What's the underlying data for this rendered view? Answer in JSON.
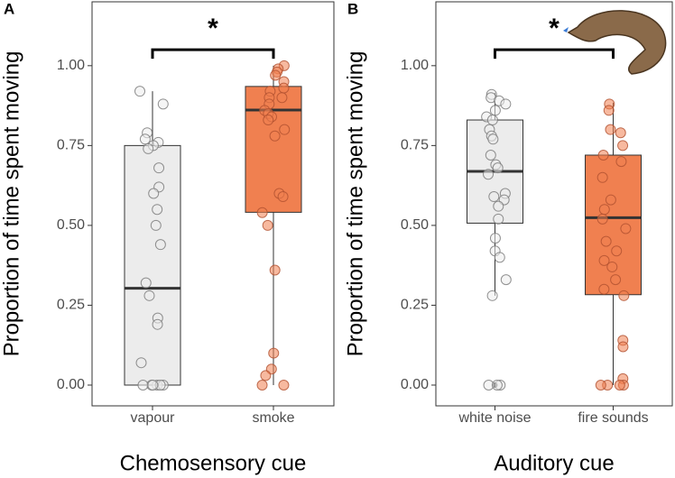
{
  "chart_data": [
    {
      "type": "box",
      "panel_label": "A",
      "x_label": "Chemosensory cue",
      "y_label": "Proportion of time spent moving",
      "annotation": "*",
      "categories": [
        "vapour",
        "smoke"
      ],
      "colors": [
        "#ececec",
        "#f08050"
      ],
      "boxes": [
        {
          "whislo": 0,
          "q1": 0,
          "med": 0.303,
          "q3": 0.75,
          "whishi": 0.92
        },
        {
          "whislo": 0,
          "q1": 0.541,
          "med": 0.861,
          "q3": 0.935,
          "whishi": 1.0
        }
      ],
      "outliers": [
        [],
        []
      ],
      "points": [
        [
          0.92,
          0.88,
          0.79,
          0.77,
          0.76,
          0.75,
          0.74,
          0.68,
          0.62,
          0.6,
          0.55,
          0.5,
          0.44,
          0.32,
          0.28,
          0.21,
          0.19,
          0.07,
          0,
          0,
          0,
          0,
          0,
          0
        ],
        [
          1.0,
          0.99,
          0.98,
          0.97,
          0.95,
          0.93,
          0.92,
          0.9,
          0.9,
          0.88,
          0.86,
          0.85,
          0.84,
          0.83,
          0.8,
          0.78,
          0.6,
          0.59,
          0.54,
          0.5,
          0.36,
          0.1,
          0.05,
          0.03,
          0,
          0
        ]
      ],
      "ylim": [
        -0.065,
        1.2
      ],
      "yticks": [
        {
          "value": 0,
          "label": "0.00"
        },
        {
          "value": 0.25,
          "label": "0.25"
        },
        {
          "value": 0.5,
          "label": "0.50"
        },
        {
          "value": 0.75,
          "label": "0.75"
        },
        {
          "value": 1,
          "label": "1.00"
        }
      ]
    },
    {
      "type": "box",
      "panel_label": "B",
      "x_label": "Auditory cue",
      "y_label": "Proportion of time spent moving",
      "annotation": "*",
      "categories": [
        "white noise",
        "fire sounds"
      ],
      "colors": [
        "#ececec",
        "#f08050"
      ],
      "boxes": [
        {
          "whislo": 0.28,
          "q1": 0.507,
          "med": 0.669,
          "q3": 0.83,
          "whishi": 0.915
        },
        {
          "whislo": 0,
          "q1": 0.283,
          "med": 0.524,
          "q3": 0.72,
          "whishi": 0.884
        }
      ],
      "outliers": [
        [
          0
        ],
        []
      ],
      "points": [
        [
          0.91,
          0.9,
          0.89,
          0.88,
          0.86,
          0.84,
          0.83,
          0.8,
          0.78,
          0.77,
          0.72,
          0.69,
          0.68,
          0.66,
          0.6,
          0.59,
          0.58,
          0.56,
          0.52,
          0.46,
          0.42,
          0.4,
          0.33,
          0.28,
          0,
          0,
          0
        ],
        [
          0.88,
          0.86,
          0.8,
          0.79,
          0.75,
          0.72,
          0.7,
          0.65,
          0.58,
          0.55,
          0.52,
          0.49,
          0.45,
          0.42,
          0.39,
          0.37,
          0.33,
          0.3,
          0.28,
          0.14,
          0.12,
          0.02,
          0,
          0,
          0,
          0
        ]
      ],
      "ylim": [
        -0.065,
        1.2
      ],
      "yticks": [
        {
          "value": 0,
          "label": "0.00"
        },
        {
          "value": 0.25,
          "label": "0.25"
        },
        {
          "value": 0.5,
          "label": "0.50"
        },
        {
          "value": 0.75,
          "label": "0.75"
        },
        {
          "value": 1,
          "label": "1.00"
        }
      ]
    }
  ]
}
